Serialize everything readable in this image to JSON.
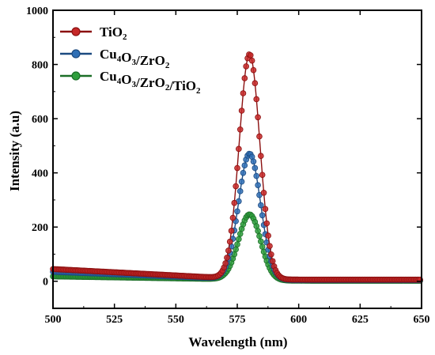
{
  "chart_data": {
    "type": "line",
    "xlabel": "Wavelength (nm)",
    "ylabel": "Intensity (a.u)",
    "xlim": [
      500,
      650
    ],
    "ylim": [
      -100,
      1000
    ],
    "xticks": [
      "500",
      "525",
      "550",
      "575",
      "600",
      "625",
      "650"
    ],
    "yticks": [
      "0",
      "200",
      "400",
      "600",
      "800",
      "1000"
    ],
    "legend_position": "top-left",
    "series": [
      {
        "name": "TiO2",
        "name_parts": [
          [
            "TiO",
            ""
          ],
          [
            "2",
            "sub"
          ]
        ],
        "color": "#c62828",
        "edge_color": "#8b1010",
        "peak_x": 580,
        "peak_y": 830,
        "width": 4.2,
        "x": [
          500,
          525,
          550,
          565,
          570,
          575,
          578,
          580,
          582,
          585,
          590,
          600,
          625,
          650
        ],
        "y": [
          45,
          35,
          22,
          15,
          40,
          420,
          760,
          830,
          790,
          450,
          40,
          8,
          5,
          5
        ]
      },
      {
        "name": "Cu4O3/ZrO2",
        "name_parts": [
          [
            "Cu",
            ""
          ],
          [
            "4",
            "sub"
          ],
          [
            "O",
            ""
          ],
          [
            "3",
            "sub"
          ],
          [
            "/ZrO",
            ""
          ],
          [
            "2",
            "sub"
          ]
        ],
        "color": "#2f6fb5",
        "edge_color": "#1c4a80",
        "peak_x": 580,
        "peak_y": 465,
        "width": 4.5,
        "x": [
          500,
          525,
          550,
          565,
          570,
          575,
          578,
          580,
          582,
          585,
          590,
          600,
          625,
          650
        ],
        "y": [
          35,
          28,
          18,
          12,
          22,
          240,
          430,
          465,
          440,
          260,
          30,
          5,
          3,
          3
        ]
      },
      {
        "name": "Cu4O3/ZrO2/TiO2",
        "name_parts": [
          [
            "Cu",
            ""
          ],
          [
            "4",
            "sub"
          ],
          [
            "O",
            ""
          ],
          [
            "3",
            "sub"
          ],
          [
            "/ZrO",
            ""
          ],
          [
            "2",
            "sub"
          ],
          [
            "/TiO",
            ""
          ],
          [
            "2",
            "sub"
          ]
        ],
        "color": "#2e9e3c",
        "edge_color": "#1b6e27",
        "peak_x": 580,
        "peak_y": 243,
        "width": 4.5,
        "x": [
          500,
          525,
          550,
          565,
          570,
          575,
          578,
          580,
          582,
          585,
          590,
          600,
          625,
          650
        ],
        "y": [
          18,
          15,
          10,
          6,
          12,
          125,
          225,
          243,
          230,
          140,
          15,
          3,
          2,
          2
        ]
      }
    ]
  }
}
